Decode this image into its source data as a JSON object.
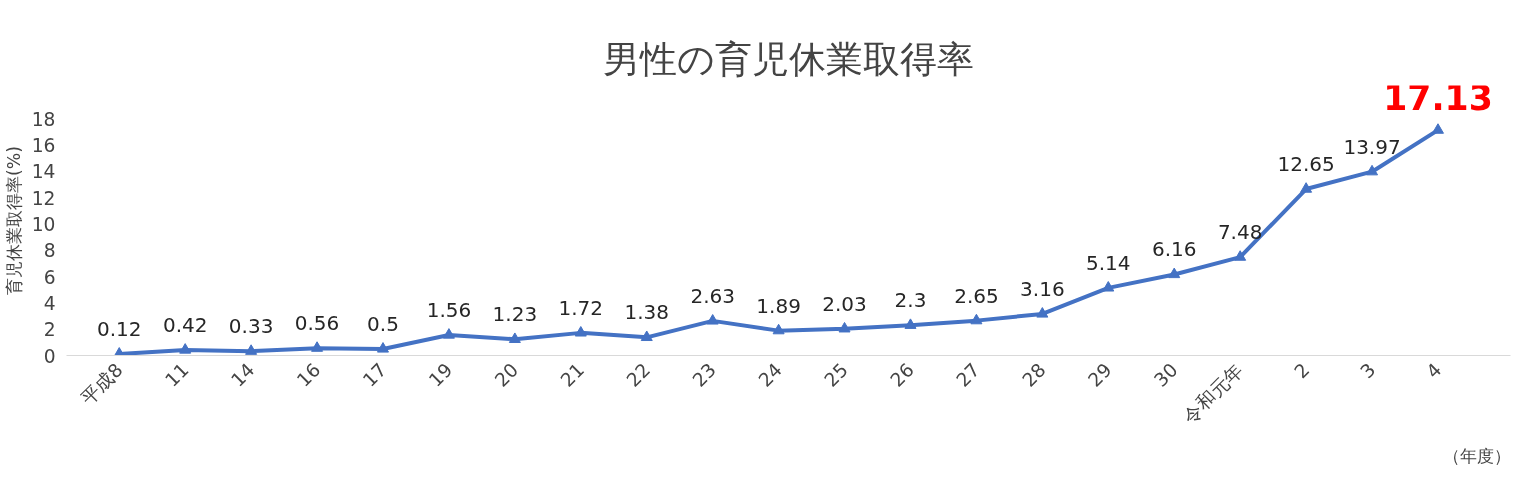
{
  "chart_data": {
    "type": "line",
    "title": "男性の育児休業取得率",
    "ylabel": "育児休業取得率(%)",
    "xlabel": "（年度）",
    "categories": [
      "平成8",
      "11",
      "14",
      "16",
      "17",
      "19",
      "20",
      "21",
      "22",
      "23",
      "24",
      "25",
      "26",
      "27",
      "28",
      "29",
      "30",
      "令和元年",
      "2",
      "3",
      "4"
    ],
    "series": [
      {
        "color": "#4472c4",
        "values": [
          0.12,
          0.42,
          0.33,
          0.56,
          0.5,
          1.56,
          1.23,
          1.72,
          1.38,
          2.63,
          1.89,
          2.03,
          2.3,
          2.65,
          3.16,
          5.14,
          6.16,
          7.48,
          12.65,
          13.97,
          17.13
        ]
      }
    ],
    "ylim": [
      0,
      18
    ],
    "yticks": [
      0,
      2,
      4,
      6,
      8,
      10,
      12,
      14,
      16,
      18
    ],
    "grid": false,
    "marker": "triangle",
    "line_style": "solid",
    "data_labels": true
  }
}
